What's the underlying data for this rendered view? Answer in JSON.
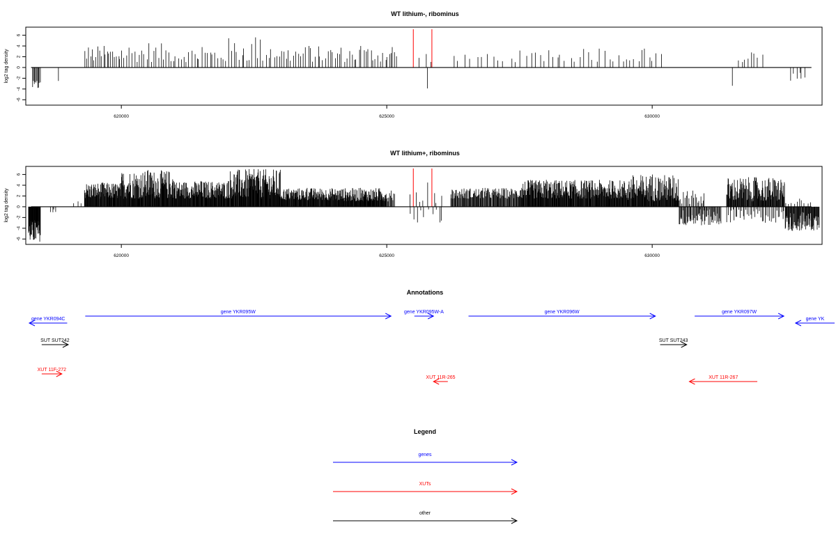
{
  "colors": {
    "genes": "#0000ff",
    "xuts": "#ff0000",
    "other": "#000000",
    "axis": "#000000",
    "marker": "#ff0000"
  },
  "chart_data": [
    {
      "type": "bar",
      "title": "WT lithium-, ribominus",
      "ylabel": "log2 tag density",
      "ylim": [
        -7,
        7.5
      ],
      "xlim": [
        618200,
        633200
      ],
      "yticks": [
        -6,
        -4,
        -2,
        0,
        2,
        4,
        6
      ],
      "xticks": [
        620000,
        625000,
        630000
      ],
      "xtick_labels": [
        "620000",
        "625000",
        "630000"
      ],
      "markers": [
        625500,
        625850
      ],
      "regions": [
        {
          "start": 618320,
          "end": 618480,
          "min": -4.0,
          "max": -2.5,
          "count": 10
        },
        {
          "start": 618800,
          "end": 618830,
          "min": -2.5,
          "max": -2.5,
          "count": 1
        },
        {
          "start": 619300,
          "end": 620000,
          "min": 1.0,
          "max": 4.0,
          "count": 20
        },
        {
          "start": 620000,
          "end": 621000,
          "min": 1.0,
          "max": 4.5,
          "count": 22
        },
        {
          "start": 621000,
          "end": 622000,
          "min": 1.0,
          "max": 3.8,
          "count": 20
        },
        {
          "start": 622000,
          "end": 623000,
          "min": 1.0,
          "max": 5.6,
          "count": 20
        },
        {
          "start": 623000,
          "end": 624000,
          "min": 1.0,
          "max": 4.0,
          "count": 22
        },
        {
          "start": 624000,
          "end": 625000,
          "min": 1.0,
          "max": 4.0,
          "count": 22
        },
        {
          "start": 625000,
          "end": 625200,
          "min": 1.5,
          "max": 3.8,
          "count": 6
        },
        {
          "start": 625600,
          "end": 625900,
          "min": 1.0,
          "max": 2.5,
          "count": 3
        },
        {
          "start": 625750,
          "end": 625780,
          "min": -3.9,
          "max": -3.9,
          "count": 1
        },
        {
          "start": 626200,
          "end": 627500,
          "min": 1.0,
          "max": 2.5,
          "count": 12
        },
        {
          "start": 627500,
          "end": 628500,
          "min": 1.0,
          "max": 3.2,
          "count": 12
        },
        {
          "start": 628500,
          "end": 629500,
          "min": 1.0,
          "max": 3.5,
          "count": 12
        },
        {
          "start": 629500,
          "end": 630200,
          "min": 1.0,
          "max": 3.5,
          "count": 10
        },
        {
          "start": 631500,
          "end": 631520,
          "min": -3.4,
          "max": -3.4,
          "count": 1
        },
        {
          "start": 631600,
          "end": 632100,
          "min": 1.0,
          "max": 2.8,
          "count": 8
        },
        {
          "start": 632600,
          "end": 632900,
          "min": -2.5,
          "max": -1.0,
          "count": 6
        }
      ]
    },
    {
      "type": "bar",
      "title": "WT lithium+, ribominus",
      "ylabel": "log2 tag density",
      "ylim": [
        -7,
        7.5
      ],
      "xlim": [
        618200,
        633200
      ],
      "yticks": [
        -6,
        -4,
        -2,
        0,
        2,
        4,
        6
      ],
      "xticks": [
        620000,
        625000,
        630000
      ],
      "xtick_labels": [
        "620000",
        "625000",
        "630000"
      ],
      "markers": [
        625500,
        625850
      ],
      "regions": [
        {
          "start": 618250,
          "end": 618480,
          "min": -6.5,
          "max": -2.5,
          "count": 40
        },
        {
          "start": 618650,
          "end": 618800,
          "min": -1.5,
          "max": -0.5,
          "count": 4
        },
        {
          "start": 619100,
          "end": 619300,
          "min": 0.5,
          "max": 1.0,
          "count": 3
        },
        {
          "start": 619300,
          "end": 620000,
          "min": 1.5,
          "max": 4.5,
          "count": 90
        },
        {
          "start": 620000,
          "end": 621000,
          "min": 1.5,
          "max": 6.8,
          "count": 140
        },
        {
          "start": 621000,
          "end": 622000,
          "min": 1.5,
          "max": 4.8,
          "count": 140
        },
        {
          "start": 622000,
          "end": 623000,
          "min": 1.5,
          "max": 7.0,
          "count": 140
        },
        {
          "start": 623000,
          "end": 624000,
          "min": 1.2,
          "max": 3.5,
          "count": 140
        },
        {
          "start": 624000,
          "end": 625000,
          "min": 1.0,
          "max": 3.5,
          "count": 140
        },
        {
          "start": 625000,
          "end": 625150,
          "min": 1.0,
          "max": 3.0,
          "count": 10
        },
        {
          "start": 625400,
          "end": 626100,
          "min": -3.0,
          "max": -0.5,
          "count": 10
        },
        {
          "start": 625400,
          "end": 626100,
          "min": 0.5,
          "max": 4.5,
          "count": 8
        },
        {
          "start": 626200,
          "end": 627500,
          "min": 1.5,
          "max": 3.5,
          "count": 120
        },
        {
          "start": 627500,
          "end": 628500,
          "min": 1.5,
          "max": 5.0,
          "count": 130
        },
        {
          "start": 628500,
          "end": 629500,
          "min": 1.5,
          "max": 5.0,
          "count": 130
        },
        {
          "start": 629500,
          "end": 630500,
          "min": 1.0,
          "max": 6.0,
          "count": 130
        },
        {
          "start": 630500,
          "end": 631300,
          "min": -3.5,
          "max": -0.5,
          "count": 60
        },
        {
          "start": 630500,
          "end": 631000,
          "min": 0.5,
          "max": 3.0,
          "count": 20
        },
        {
          "start": 631400,
          "end": 632500,
          "min": 1.0,
          "max": 5.5,
          "count": 130
        },
        {
          "start": 631400,
          "end": 632500,
          "min": -3.0,
          "max": -0.5,
          "count": 40
        },
        {
          "start": 632500,
          "end": 633150,
          "min": -4.5,
          "max": -1.0,
          "count": 70
        },
        {
          "start": 632500,
          "end": 633000,
          "min": 0.5,
          "max": 1.5,
          "count": 10
        }
      ]
    }
  ],
  "annotations": {
    "title": "Annotations",
    "features": [
      {
        "label": "gene YKR094C",
        "type": "gene",
        "strand": "-",
        "start": 618200,
        "end": 618980,
        "row": 1
      },
      {
        "label": "gene YKR095W",
        "type": "gene",
        "strand": "+",
        "start": 619320,
        "end": 625080,
        "row": 0
      },
      {
        "label": "gene YKR095W-A",
        "type": "gene",
        "strand": "+",
        "start": 625520,
        "end": 625880,
        "row": 0
      },
      {
        "label": "gene YKR096W",
        "type": "gene",
        "strand": "+",
        "start": 626540,
        "end": 630060,
        "row": 0
      },
      {
        "label": "gene YKR097W",
        "type": "gene",
        "strand": "+",
        "start": 630800,
        "end": 632480,
        "row": 0
      },
      {
        "label": "gene YK",
        "type": "gene",
        "strand": "-",
        "start": 632700,
        "end": 634400,
        "row": 1
      },
      {
        "label": "SUT SUT242",
        "type": "other",
        "strand": "+",
        "start": 618500,
        "end": 619000,
        "row": 2
      },
      {
        "label": "SUT SUT243",
        "type": "other",
        "strand": "+",
        "start": 630150,
        "end": 630650,
        "row": 2
      },
      {
        "label": "XUT 11F-272",
        "type": "xut",
        "strand": "+",
        "start": 618500,
        "end": 618880,
        "row": 3
      },
      {
        "label": "XUT 11R-265",
        "type": "xut",
        "strand": "-",
        "start": 625880,
        "end": 626150,
        "row": 4
      },
      {
        "label": "XUT 11R-267",
        "type": "xut",
        "strand": "-",
        "start": 630700,
        "end": 631980,
        "row": 4
      }
    ]
  },
  "legend": {
    "title": "Legend",
    "items": [
      {
        "label": "genes",
        "type": "gene"
      },
      {
        "label": "XUTs",
        "type": "xut"
      },
      {
        "label": "other",
        "type": "other"
      }
    ]
  }
}
